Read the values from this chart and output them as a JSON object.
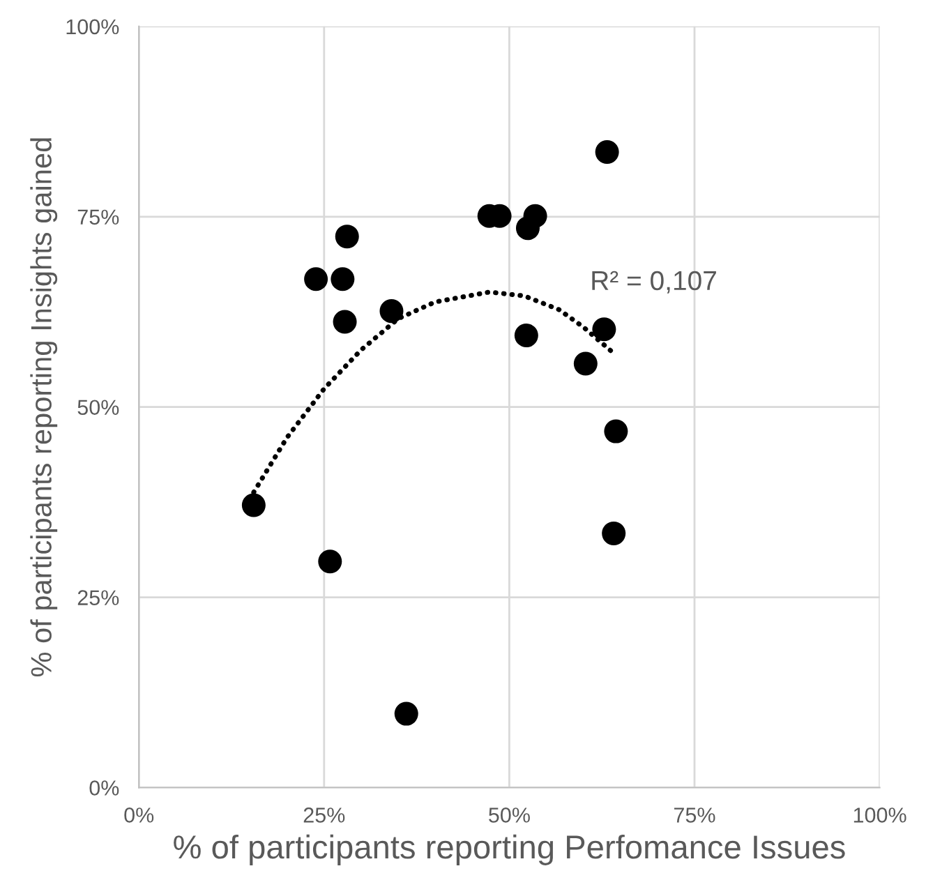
{
  "chart_data": {
    "type": "scatter",
    "xlabel": "% of participants reporting Perfomance Issues",
    "ylabel": "% of participants reporting Insights gained",
    "xlim": [
      0,
      100
    ],
    "ylim": [
      0,
      100
    ],
    "xticks": [
      {
        "value": 0,
        "label": "0%"
      },
      {
        "value": 25,
        "label": "25%"
      },
      {
        "value": 50,
        "label": "50%"
      },
      {
        "value": 75,
        "label": "75%"
      },
      {
        "value": 100,
        "label": "100%"
      }
    ],
    "yticks": [
      {
        "value": 0,
        "label": "0%"
      },
      {
        "value": 25,
        "label": "25%"
      },
      {
        "value": 50,
        "label": "50%"
      },
      {
        "value": 75,
        "label": "75%"
      },
      {
        "value": 100,
        "label": "100%"
      }
    ],
    "grid": true,
    "legend": false,
    "series": [
      {
        "color": "#000000",
        "marker": "circle",
        "x": [
          15.5,
          23.9,
          27.5,
          28.1,
          27.8,
          25.8,
          34.1,
          36.1,
          47.3,
          48.7,
          53.5,
          52.5,
          52.3,
          60.3,
          62.8,
          63.2,
          64.4,
          64.1
        ],
        "values": [
          37.1,
          66.8,
          66.8,
          72.4,
          61.2,
          29.7,
          62.6,
          9.7,
          75.1,
          75.1,
          75.1,
          73.5,
          59.4,
          55.7,
          60.2,
          83.5,
          46.8,
          33.4
        ]
      },
      {
        "type": "line",
        "color": "#000000",
        "marker": "none",
        "line_style": "dotted",
        "x": [
          15.5,
          20,
          25,
          30,
          35,
          40,
          47.3,
          52,
          56.7,
          60,
          64.4
        ],
        "values": [
          38.8,
          46,
          52.4,
          57.5,
          61.6,
          63.8,
          65.1,
          64.6,
          62.8,
          60.5,
          56.8
        ]
      }
    ],
    "annotations": [
      "R² = 0,107"
    ]
  }
}
